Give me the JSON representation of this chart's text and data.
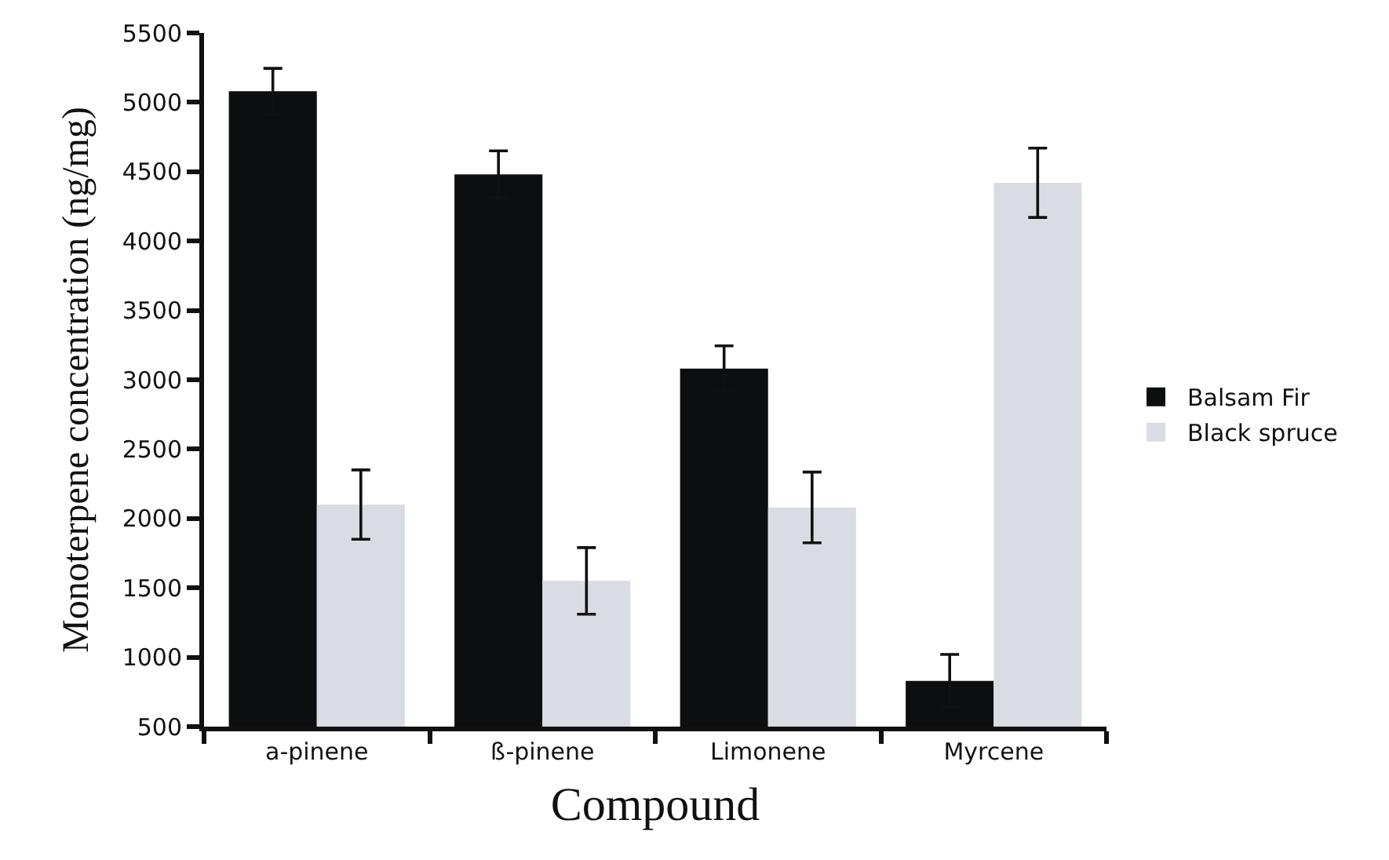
{
  "chart_data": {
    "type": "bar",
    "xlabel": "Compound",
    "ylabel": "Monoterpene concentration (ng/mg)",
    "categories": [
      "a-pinene",
      "ß-pinene",
      "Limonene",
      "Myrcene"
    ],
    "series": [
      {
        "name": "Balsam Fir",
        "color": "#0d0e10",
        "values": [
          5080,
          4480,
          3080,
          830
        ],
        "errors": [
          165,
          170,
          165,
          190
        ]
      },
      {
        "name": "Black spruce",
        "color": "#d9dde3",
        "values": [
          2100,
          1550,
          2080,
          4420
        ],
        "errors": [
          250,
          240,
          255,
          250
        ]
      }
    ],
    "ylim": [
      500,
      5500
    ],
    "yticks": [
      500,
      1000,
      1500,
      2000,
      2500,
      3000,
      3500,
      4000,
      4500,
      5000,
      5500
    ],
    "legend": "right"
  }
}
